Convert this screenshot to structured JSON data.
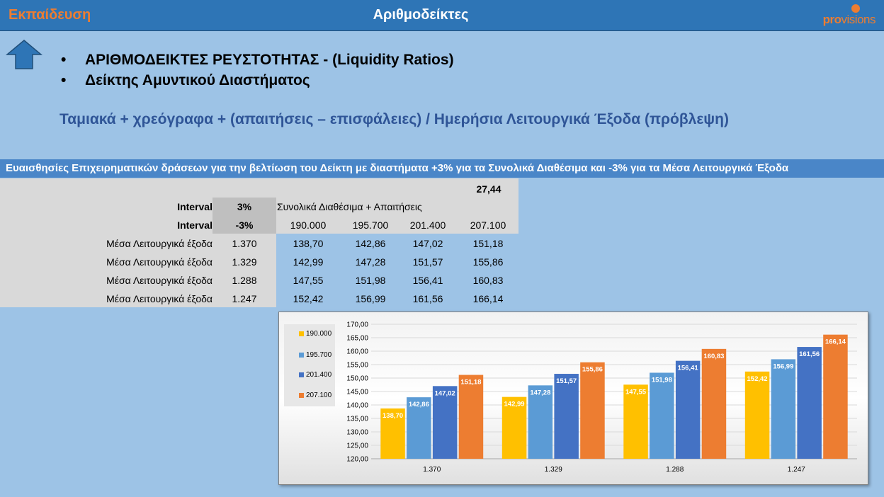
{
  "header": {
    "left_label": "Εκπαίδευση",
    "title": "Αριθμοδείκτες",
    "logo_pro": "pro",
    "logo_visions": "visions"
  },
  "bullets": [
    "ΑΡΙΘΜΟΔΕΙΚΤΕΣ ΡΕΥΣΤΟΤΗΤΑΣ - (Liquidity Ratios)",
    "Δείκτης Αμυντικού Διαστήματος"
  ],
  "formula": "Ταμιακά  + χρεόγραφα + (απαιτήσεις – επισφάλειες)  / Ημερήσια Λειτουργικά Έξοδα (πρόβλεψη)",
  "sensitivity_title": "Ευαισθησίες Επιχειρηματικών δράσεων για την βελτίωση του Δείκτη με διαστήματα +3% για τα Συνολικά Διαθέσιμα και -3% για τα Μέσα Λειτουργικά Έξοδα",
  "table": {
    "base_value": "27,44",
    "interval_label": "Interval",
    "interval_up": "3%",
    "interval_down": "-3%",
    "columns_title": "Συνολικά  Διαθέσιμα + Απαιτήσεις",
    "columns": [
      "190.000",
      "195.700",
      "201.400",
      "207.100"
    ],
    "rows": [
      {
        "label": "Μέσα Λειτουργικά  έξοδα",
        "expense": "1.370",
        "values": [
          "138,70",
          "142,86",
          "147,02",
          "151,18"
        ]
      },
      {
        "label": "Μέσα Λειτουργικά  έξοδα",
        "expense": "1.329",
        "values": [
          "142,99",
          "147,28",
          "151,57",
          "155,86"
        ]
      },
      {
        "label": "Μέσα Λειτουργικά  έξοδα",
        "expense": "1.288",
        "values": [
          "147,55",
          "151,98",
          "156,41",
          "160,83"
        ]
      },
      {
        "label": "Μέσα Λειτουργικά  έξοδα",
        "expense": "1.247",
        "values": [
          "152,42",
          "156,99",
          "161,56",
          "166,14"
        ]
      }
    ]
  },
  "chart_data": {
    "type": "bar",
    "categories": [
      "1.370",
      "1.329",
      "1.288",
      "1.247"
    ],
    "series": [
      {
        "name": "190.000",
        "values": [
          138.7,
          142.99,
          147.55,
          152.42
        ],
        "labels": [
          "138,70",
          "142,99",
          "147,55",
          "152,42"
        ],
        "color": "#ffc000"
      },
      {
        "name": "195.700",
        "values": [
          142.86,
          147.28,
          151.98,
          156.99
        ],
        "labels": [
          "142,86",
          "147,28",
          "151,98",
          "156,99"
        ],
        "color": "#5b9bd5"
      },
      {
        "name": "201.400",
        "values": [
          147.02,
          151.57,
          156.41,
          161.56
        ],
        "labels": [
          "147,02",
          "151,57",
          "156,41",
          "161,56"
        ],
        "color": "#4472c4"
      },
      {
        "name": "207.100",
        "values": [
          151.18,
          155.86,
          160.83,
          166.14
        ],
        "labels": [
          "151,18",
          "155,86",
          "160,83",
          "166,14"
        ],
        "color": "#ed7d31"
      }
    ],
    "ylim": [
      120,
      170
    ],
    "yticks": [
      "120,00",
      "125,00",
      "130,00",
      "135,00",
      "140,00",
      "145,00",
      "150,00",
      "155,00",
      "160,00",
      "165,00",
      "170,00"
    ],
    "grid": true,
    "legend": "left"
  }
}
